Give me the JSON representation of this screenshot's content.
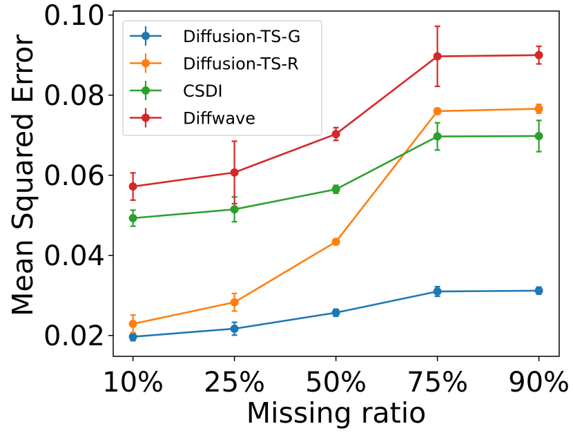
{
  "chart_data": {
    "type": "line",
    "title": "",
    "xlabel": "Missing ratio",
    "ylabel": "Mean Squared Error",
    "categories": [
      "10%",
      "25%",
      "50%",
      "75%",
      "90%"
    ],
    "ylim": [
      0.0148,
      0.101
    ],
    "yticks": [
      0.02,
      0.04,
      0.06,
      0.08,
      0.1
    ],
    "ytick_labels": [
      "0.02",
      "0.04",
      "0.06",
      "0.08",
      "0.10"
    ],
    "grid": false,
    "legend_position": "top-left",
    "error_bars": true,
    "series": [
      {
        "name": "Diffusion-TS-G",
        "color": "#1f77b4",
        "values": [
          0.0197,
          0.0217,
          0.0257,
          0.031,
          0.0312
        ],
        "errors": [
          0.001,
          0.0016,
          0.0009,
          0.0012,
          0.0009
        ]
      },
      {
        "name": "Diffusion-TS-R",
        "color": "#ff7f0e",
        "values": [
          0.0229,
          0.0283,
          0.0434,
          0.076,
          0.0766
        ],
        "errors": [
          0.0022,
          0.0022,
          0.0006,
          0.0007,
          0.0011
        ]
      },
      {
        "name": "CSDI",
        "color": "#2ca02c",
        "values": [
          0.0493,
          0.0515,
          0.0565,
          0.0697,
          0.0698
        ],
        "errors": [
          0.002,
          0.0031,
          0.001,
          0.0034,
          0.0039
        ]
      },
      {
        "name": "Diffwave",
        "color": "#d62728",
        "values": [
          0.0572,
          0.0607,
          0.0703,
          0.0897,
          0.09
        ],
        "errors": [
          0.0034,
          0.0078,
          0.0016,
          0.0075,
          0.0022
        ]
      }
    ]
  }
}
